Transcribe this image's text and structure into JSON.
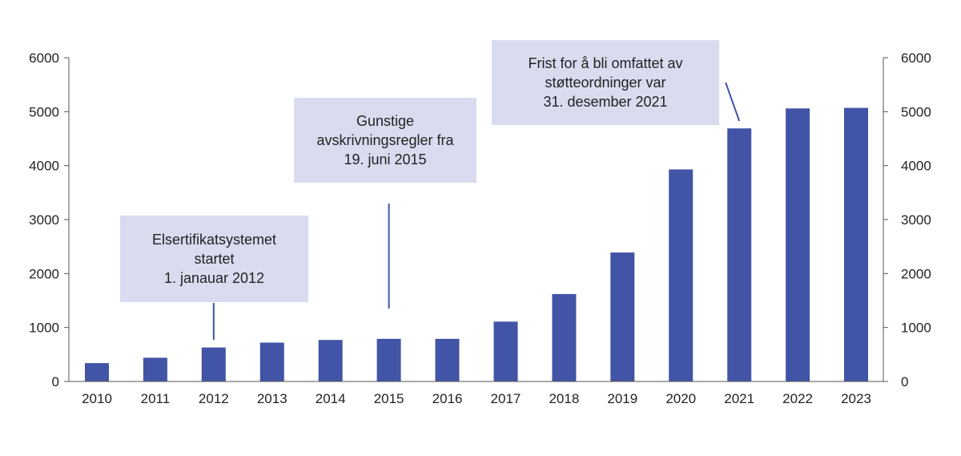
{
  "chart_data": {
    "type": "bar",
    "title": "",
    "xlabel": "",
    "ylabel": "",
    "categories": [
      "2010",
      "2011",
      "2012",
      "2013",
      "2014",
      "2015",
      "2016",
      "2017",
      "2018",
      "2019",
      "2020",
      "2021",
      "2022",
      "2023"
    ],
    "values": [
      340,
      440,
      630,
      720,
      770,
      790,
      790,
      1110,
      1620,
      2390,
      3930,
      4690,
      5060,
      5070
    ],
    "ylim": [
      0,
      6000
    ],
    "yticks": [
      0,
      1000,
      2000,
      3000,
      4000,
      5000,
      6000
    ],
    "y_axis_right": true,
    "grid": false,
    "legend": "none",
    "bar_color": "#4254a6",
    "annotation_box_color": "#d9dcef",
    "annotations": [
      {
        "target": "2012",
        "lines": [
          "Elsertifikatsystemet",
          "startet",
          "1. janauar 2012"
        ]
      },
      {
        "target": "2015",
        "lines": [
          "Gunstige",
          "avskrivningsregler fra",
          "19. juni 2015"
        ]
      },
      {
        "target": "2021",
        "lines": [
          "Frist for å bli omfattet av",
          "støtteordninger var",
          "31. desember 2021"
        ]
      }
    ]
  }
}
